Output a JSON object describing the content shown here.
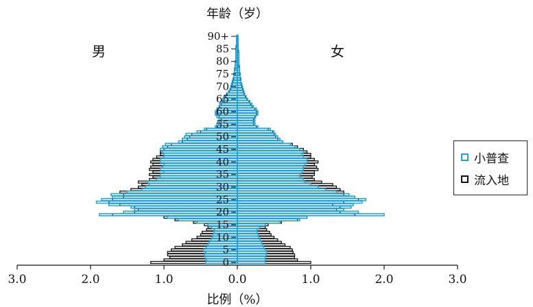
{
  "chart_data": {
    "type": "bar",
    "orientation": "horizontal",
    "subtype": "population-pyramid",
    "title": "年龄（岁）",
    "xlabel": "比例（%）",
    "left_label": "男",
    "right_label": "女",
    "xlim": [
      -3.0,
      3.0
    ],
    "x_ticks": [
      -3,
      -2,
      -1,
      0,
      1,
      2,
      3
    ],
    "x_tick_labels": [
      "3.0",
      "2.0",
      "1.0",
      "0.0",
      "1.0",
      "2.0",
      "3.0"
    ],
    "y_tick_labels": [
      "0",
      "5",
      "10",
      "15",
      "20",
      "25",
      "30",
      "35",
      "40",
      "45",
      "50",
      "55",
      "60",
      "65",
      "70",
      "75",
      "80",
      "85",
      "90+"
    ],
    "ages_start": 0,
    "ages_end": 90,
    "legend_position": "right",
    "series": [
      {
        "name": "小普查",
        "color": "#1aa3dd",
        "male": [
          0.43,
          0.42,
          0.44,
          0.45,
          0.43,
          0.46,
          0.42,
          0.4,
          0.38,
          0.36,
          0.34,
          0.33,
          0.32,
          0.31,
          0.35,
          0.4,
          0.55,
          0.8,
          0.95,
          1.88,
          1.55,
          1.4,
          1.45,
          1.75,
          1.92,
          1.85,
          1.7,
          1.72,
          1.5,
          1.3,
          1.25,
          1.2,
          1.22,
          1.1,
          1.05,
          1.05,
          1.0,
          1.05,
          1.02,
          1.0,
          1.05,
          1.05,
          1.0,
          1.0,
          1.02,
          1.05,
          1.02,
          0.98,
          0.8,
          0.75,
          0.72,
          0.7,
          0.55,
          0.45,
          0.3,
          0.28,
          0.25,
          0.25,
          0.28,
          0.3,
          0.3,
          0.28,
          0.25,
          0.24,
          0.22,
          0.2,
          0.18,
          0.15,
          0.12,
          0.1,
          0.09,
          0.08,
          0.07,
          0.06,
          0.05,
          0.05,
          0.04,
          0.04,
          0.03,
          0.03,
          0.03,
          0.02,
          0.02,
          0.02,
          0.02,
          0.02,
          0.02,
          0.01,
          0.01,
          0.01,
          0.01
        ],
        "female": [
          0.38,
          0.38,
          0.38,
          0.39,
          0.4,
          0.38,
          0.36,
          0.34,
          0.33,
          0.31,
          0.29,
          0.28,
          0.27,
          0.27,
          0.3,
          0.38,
          0.58,
          0.85,
          0.95,
          2.0,
          1.65,
          1.45,
          1.55,
          1.58,
          1.7,
          1.75,
          1.6,
          1.52,
          1.35,
          1.2,
          1.1,
          1.0,
          0.92,
          0.9,
          0.85,
          0.85,
          0.88,
          0.9,
          0.9,
          0.92,
          0.95,
          0.95,
          0.9,
          0.88,
          0.9,
          0.85,
          0.78,
          0.72,
          0.62,
          0.58,
          0.55,
          0.52,
          0.5,
          0.45,
          0.28,
          0.24,
          0.24,
          0.24,
          0.25,
          0.28,
          0.28,
          0.26,
          0.22,
          0.2,
          0.17,
          0.14,
          0.12,
          0.1,
          0.09,
          0.08,
          0.07,
          0.06,
          0.05,
          0.05,
          0.04,
          0.04,
          0.03,
          0.03,
          0.03,
          0.02,
          0.02,
          0.02,
          0.02,
          0.02,
          0.02,
          0.01,
          0.01,
          0.01,
          0.01,
          0.01,
          0.01
        ]
      },
      {
        "name": "流入地",
        "color": "#111111",
        "male": [
          1.18,
          1.0,
          0.92,
          0.95,
          0.95,
          0.9,
          0.85,
          0.75,
          0.7,
          0.62,
          0.55,
          0.5,
          0.48,
          0.42,
          0.4,
          0.45,
          0.6,
          0.85,
          1.0,
          1.7,
          1.4,
          1.35,
          1.4,
          1.6,
          1.75,
          1.7,
          1.55,
          1.55,
          1.6,
          1.45,
          1.35,
          1.3,
          1.35,
          1.2,
          1.15,
          1.2,
          1.15,
          1.2,
          1.18,
          1.15,
          1.18,
          1.15,
          1.1,
          1.05,
          1.05,
          1.0,
          0.95,
          0.9,
          0.75,
          0.68,
          0.65,
          0.62,
          0.5,
          0.42,
          0.28,
          0.25,
          0.22,
          0.22,
          0.25,
          0.28,
          0.28,
          0.26,
          0.24,
          0.22,
          0.2,
          0.18,
          0.16,
          0.14,
          0.11,
          0.09,
          0.08,
          0.07,
          0.06,
          0.05,
          0.05,
          0.04,
          0.04,
          0.03,
          0.03,
          0.03,
          0.02,
          0.02,
          0.02,
          0.02,
          0.02,
          0.02,
          0.01,
          0.01,
          0.01,
          0.01,
          0.01
        ],
        "female": [
          1.0,
          0.82,
          0.78,
          0.78,
          0.76,
          0.75,
          0.72,
          0.65,
          0.6,
          0.55,
          0.5,
          0.46,
          0.44,
          0.4,
          0.38,
          0.42,
          0.6,
          0.82,
          0.95,
          1.6,
          1.4,
          1.35,
          1.4,
          1.3,
          1.45,
          1.65,
          1.6,
          1.45,
          1.45,
          1.4,
          1.35,
          1.3,
          1.15,
          1.05,
          1.02,
          1.05,
          1.05,
          1.1,
          1.08,
          1.05,
          1.1,
          1.05,
          1.0,
          1.0,
          0.95,
          0.9,
          0.82,
          0.75,
          0.62,
          0.55,
          0.52,
          0.5,
          0.48,
          0.42,
          0.26,
          0.22,
          0.22,
          0.22,
          0.24,
          0.26,
          0.26,
          0.24,
          0.2,
          0.18,
          0.16,
          0.13,
          0.11,
          0.09,
          0.08,
          0.07,
          0.06,
          0.05,
          0.05,
          0.04,
          0.04,
          0.03,
          0.03,
          0.03,
          0.02,
          0.02,
          0.02,
          0.02,
          0.02,
          0.02,
          0.01,
          0.01,
          0.01,
          0.01,
          0.01,
          0.01,
          0.01
        ]
      }
    ]
  }
}
